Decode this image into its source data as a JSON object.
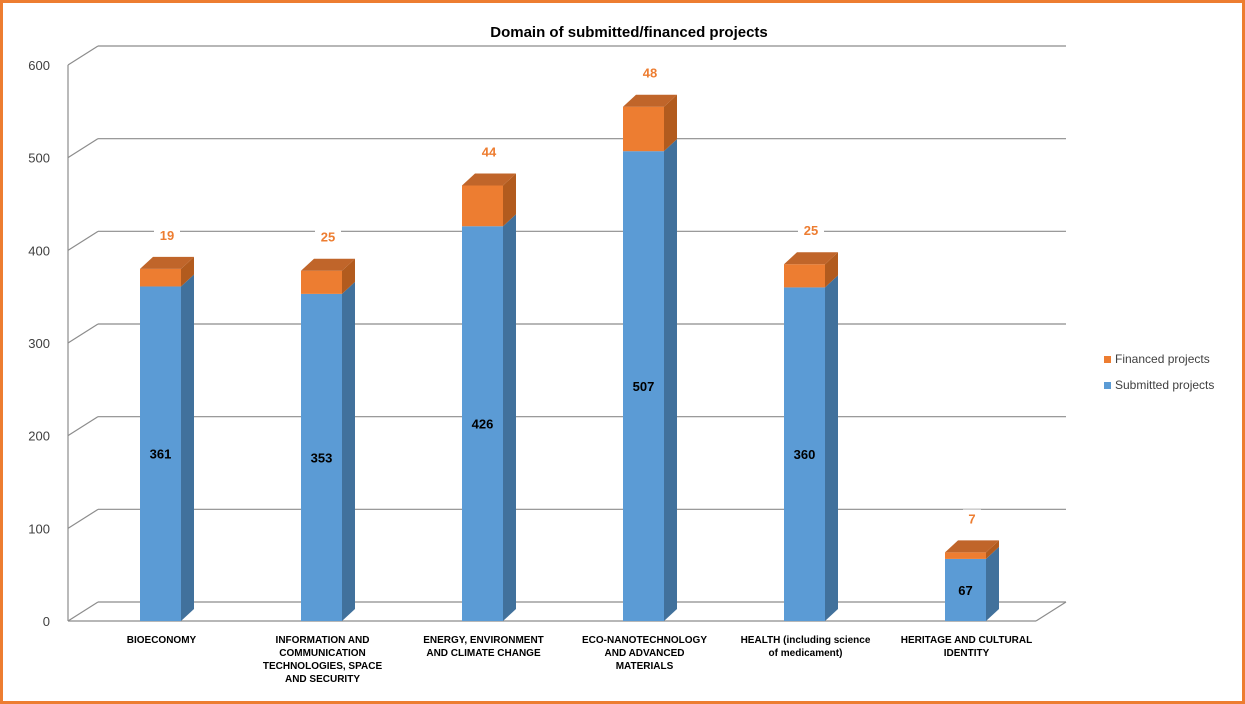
{
  "chart_data": {
    "type": "bar",
    "stacked": true,
    "three_d": true,
    "title": "Domain of submitted/financed projects",
    "categories": [
      "BIOECONOMY",
      "INFORMATION AND\nCOMMUNICATION\nTECHNOLOGIES, SPACE\nAND SECURITY",
      "ENERGY, ENVIRONMENT\nAND CLIMATE CHANGE",
      "ECO-NANOTECHNOLOGY\nAND ADVANCED\nMATERIALS",
      "HEALTH (including science\nof medicament)",
      "HERITAGE AND CULTURAL\nIDENTITY"
    ],
    "series": [
      {
        "name": "Submitted projects",
        "values": [
          361,
          353,
          426,
          507,
          360,
          67
        ],
        "color": "#5B9BD5"
      },
      {
        "name": "Financed projects",
        "values": [
          19,
          25,
          44,
          48,
          25,
          7
        ],
        "color": "#ED7D31"
      }
    ],
    "ylim": [
      0,
      600
    ],
    "yticks": [
      0,
      100,
      200,
      300,
      400,
      500,
      600
    ],
    "grid": true,
    "legend_position": "right",
    "frame_border_color": "#ED7D31"
  }
}
